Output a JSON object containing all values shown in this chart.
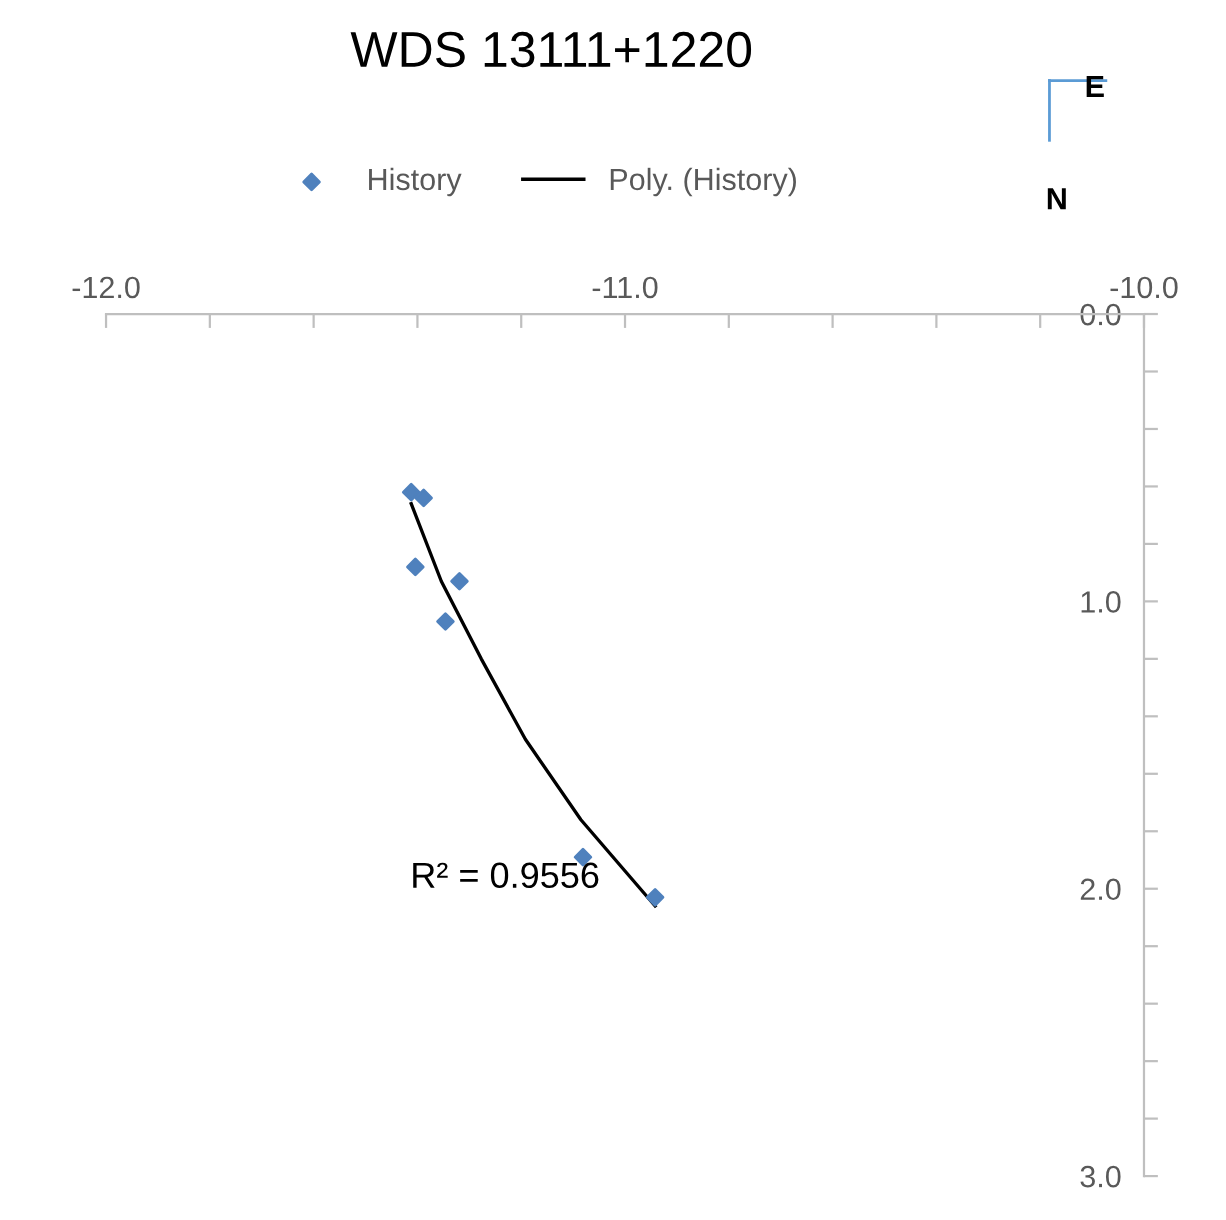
{
  "chart_data": {
    "type": "scatter",
    "title": "WDS 13111+1220",
    "series": [
      {
        "name": "History",
        "color": "#4f81bd",
        "marker": "diamond",
        "x": [
          -11.412,
          -11.388,
          -11.404,
          -11.319,
          -11.346,
          -11.081,
          -10.942
        ],
        "values": [
          0.62,
          0.64,
          0.88,
          0.93,
          1.07,
          1.89,
          2.03
        ]
      },
      {
        "name": "Poly. (History)",
        "type": "line",
        "color": "#000000",
        "marker": "none",
        "line_style": "solid",
        "x": [
          -11.412,
          -11.354,
          -11.277,
          -11.192,
          -11.085,
          -10.942
        ],
        "values": [
          0.66,
          0.93,
          1.2,
          1.48,
          1.76,
          2.06
        ]
      }
    ],
    "xlim": [
      -12.0,
      -10.0
    ],
    "xticks": [
      {
        "value": -12.0,
        "label": "-12.0"
      },
      {
        "value": -11.8,
        "label": null
      },
      {
        "value": -11.6,
        "label": null
      },
      {
        "value": -11.4,
        "label": null
      },
      {
        "value": -11.2,
        "label": null
      },
      {
        "value": -11.0,
        "label": "-11.0"
      },
      {
        "value": -10.8,
        "label": null
      },
      {
        "value": -10.6,
        "label": null
      },
      {
        "value": -10.4,
        "label": null
      },
      {
        "value": -10.2,
        "label": null
      },
      {
        "value": -10.0,
        "label": "-10.0"
      }
    ],
    "ylim": [
      3.0,
      0.0
    ],
    "yticks": [
      {
        "value": 0.0,
        "label": "0.0"
      },
      {
        "value": 0.2,
        "label": null
      },
      {
        "value": 0.4,
        "label": null
      },
      {
        "value": 0.6,
        "label": null
      },
      {
        "value": 0.8,
        "label": null
      },
      {
        "value": 1.0,
        "label": "1.0"
      },
      {
        "value": 1.2,
        "label": null
      },
      {
        "value": 1.4,
        "label": null
      },
      {
        "value": 1.6,
        "label": null
      },
      {
        "value": 1.8,
        "label": null
      },
      {
        "value": 2.0,
        "label": "2.0"
      },
      {
        "value": 2.2,
        "label": null
      },
      {
        "value": 2.4,
        "label": null
      },
      {
        "value": 2.6,
        "label": null
      },
      {
        "value": 2.8,
        "label": null
      },
      {
        "value": 3.0,
        "label": "3.0"
      }
    ],
    "grid": false,
    "legend": "top",
    "annotations": [
      "R² = 0.9556",
      "E",
      "N"
    ]
  }
}
